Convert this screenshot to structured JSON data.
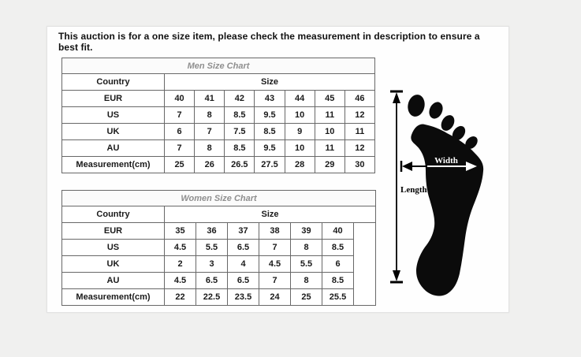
{
  "notice": "This auction is for a one size item, please check the measurement in description to ensure a best fit.",
  "men_chart": {
    "title": "Men Size Chart",
    "country_header": "Country",
    "size_header": "Size",
    "rows": [
      {
        "label": "EUR",
        "values": [
          "40",
          "41",
          "42",
          "43",
          "44",
          "45",
          "46"
        ]
      },
      {
        "label": "US",
        "values": [
          "7",
          "8",
          "8.5",
          "9.5",
          "10",
          "11",
          "12"
        ]
      },
      {
        "label": "UK",
        "values": [
          "6",
          "7",
          "7.5",
          "8.5",
          "9",
          "10",
          "11"
        ]
      },
      {
        "label": "AU",
        "values": [
          "7",
          "8",
          "8.5",
          "9.5",
          "10",
          "11",
          "12"
        ]
      },
      {
        "label": "Measurement(cm)",
        "values": [
          "25",
          "26",
          "26.5",
          "27.5",
          "28",
          "29",
          "30"
        ]
      }
    ]
  },
  "women_chart": {
    "title": "Women Size Chart",
    "country_header": "Country",
    "size_header": "Size",
    "rows": [
      {
        "label": "EUR",
        "values": [
          "35",
          "36",
          "37",
          "38",
          "39",
          "40"
        ]
      },
      {
        "label": "US",
        "values": [
          "4.5",
          "5.5",
          "6.5",
          "7",
          "8",
          "8.5"
        ]
      },
      {
        "label": "UK",
        "values": [
          "2",
          "3",
          "4",
          "4.5",
          "5.5",
          "6"
        ]
      },
      {
        "label": "AU",
        "values": [
          "4.5",
          "6.5",
          "6.5",
          "7",
          "8",
          "8.5"
        ]
      },
      {
        "label": "Measurement(cm)",
        "values": [
          "22",
          "22.5",
          "23.5",
          "24",
          "25",
          "25.5"
        ]
      }
    ]
  },
  "diagram": {
    "width_label": "Width",
    "length_label": "Length"
  },
  "colors": {
    "table_border": "#686868",
    "title_text": "#8f8f8f",
    "foot_black": "#0b0b0b",
    "background_gray": "#f0f0ef",
    "panel_white": "#fefefe"
  }
}
